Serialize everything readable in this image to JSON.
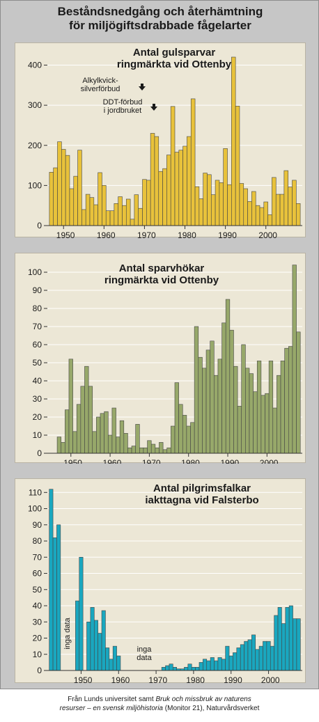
{
  "title_line1": "Beståndsnedgång och återhämtning",
  "title_line2": "för miljögiftsdrabbade fågelarter",
  "footer": {
    "part1": "Från Lunds universitet samt ",
    "italic1": "Bruk och missbruk av naturens",
    "italic2": "resurser – en svensk miljöhistoria",
    "part2": " (Monitor 21), Naturvårdsverket"
  },
  "colors": {
    "panel_bg": "#ece7d6",
    "frame_bg": "#c6c6c6",
    "grid": "#ffffff",
    "gulsparv": "#e8c23b",
    "sparvhok": "#97a86a",
    "pilgrimsfalk": "#1aa7bf"
  },
  "chart_data": [
    {
      "type": "bar",
      "title_line1": "Antal gulsparvar",
      "title_line2": "ringmärkta vid Ottenby",
      "x_ticks": [
        1950,
        1960,
        1970,
        1980,
        1990,
        2000
      ],
      "y_ticks": [
        0,
        100,
        200,
        300,
        400
      ],
      "ylim": [
        0,
        420
      ],
      "xlim": [
        1946,
        2009
      ],
      "grid": true,
      "annotations": [
        {
          "line1": "Alkylkvick-",
          "line2": "silverförbud",
          "arrow": "down-arrow",
          "year": 1966
        },
        {
          "line1": "DDT-förbud",
          "line2": "i jordbruket",
          "arrow": "down-arrow",
          "year": 1970
        }
      ],
      "years": [
        1947,
        1948,
        1949,
        1950,
        1951,
        1952,
        1953,
        1954,
        1955,
        1956,
        1957,
        1958,
        1959,
        1960,
        1961,
        1962,
        1963,
        1964,
        1965,
        1966,
        1967,
        1968,
        1969,
        1970,
        1971,
        1972,
        1973,
        1974,
        1975,
        1976,
        1977,
        1978,
        1979,
        1980,
        1981,
        1982,
        1983,
        1984,
        1985,
        1986,
        1987,
        1988,
        1989,
        1990,
        1991,
        1992,
        1993,
        1994,
        1995,
        1996,
        1997,
        1998,
        1999,
        2000,
        2001,
        2002,
        2003,
        2004,
        2005,
        2006,
        2007,
        2008
      ],
      "values": [
        133,
        144,
        209,
        190,
        175,
        92,
        123,
        188,
        40,
        78,
        70,
        52,
        132,
        100,
        37,
        37,
        55,
        72,
        50,
        66,
        16,
        77,
        43,
        115,
        113,
        230,
        222,
        135,
        142,
        176,
        297,
        183,
        188,
        198,
        222,
        316,
        97,
        67,
        131,
        127,
        77,
        113,
        107,
        192,
        102,
        420,
        298,
        105,
        92,
        60,
        85,
        50,
        45,
        59,
        27,
        120,
        78,
        78,
        137,
        96,
        113,
        55
      ]
    },
    {
      "type": "bar",
      "title_line1": "Antal sparvhökar",
      "title_line2": "ringmärkta vid Ottenby",
      "x_ticks": [
        1950,
        1960,
        1970,
        1980,
        1990,
        2000
      ],
      "y_ticks": [
        0,
        10,
        20,
        30,
        40,
        50,
        60,
        70,
        80,
        90,
        100
      ],
      "ylim": [
        0,
        105
      ],
      "xlim": [
        1944,
        2009
      ],
      "grid": true,
      "years": [
        1947,
        1948,
        1949,
        1950,
        1951,
        1952,
        1953,
        1954,
        1955,
        1956,
        1957,
        1958,
        1959,
        1960,
        1961,
        1962,
        1963,
        1964,
        1965,
        1966,
        1967,
        1968,
        1969,
        1970,
        1971,
        1972,
        1973,
        1974,
        1975,
        1976,
        1977,
        1978,
        1979,
        1980,
        1981,
        1982,
        1983,
        1984,
        1985,
        1986,
        1987,
        1988,
        1989,
        1990,
        1991,
        1992,
        1993,
        1994,
        1995,
        1996,
        1997,
        1998,
        1999,
        2000,
        2001,
        2002,
        2003,
        2004,
        2005,
        2006,
        2007,
        2008
      ],
      "values": [
        9,
        6,
        24,
        52,
        12,
        27,
        37,
        48,
        37,
        12,
        20,
        22,
        23,
        10,
        25,
        9,
        18,
        11,
        3,
        4,
        16,
        3,
        3,
        7,
        5,
        3,
        6,
        2,
        3,
        15,
        39,
        27,
        21,
        15,
        17,
        70,
        53,
        47,
        57,
        62,
        43,
        52,
        72,
        85,
        68,
        48,
        26,
        60,
        47,
        44,
        34,
        51,
        32,
        33,
        51,
        25,
        43,
        51,
        58,
        59,
        104,
        67
      ]
    },
    {
      "type": "bar",
      "title_line1": "Antal pilgrimsfalkar",
      "title_line2": "iakttagna vid Falsterbo",
      "x_ticks": [
        1950,
        1960,
        1970,
        1980,
        1990,
        2000
      ],
      "y_ticks": [
        0,
        10,
        20,
        30,
        40,
        50,
        60,
        70,
        80,
        90,
        100,
        110
      ],
      "ylim": [
        0,
        114
      ],
      "xlim": [
        1941,
        2009
      ],
      "grid": true,
      "annotations": [
        {
          "text": "inga data",
          "orientation": "vertical",
          "year": 1944
        },
        {
          "line1": "inga",
          "line2": "data",
          "year": 1966
        }
      ],
      "years": [
        1942,
        1943,
        1944,
        1949,
        1950,
        1952,
        1953,
        1954,
        1955,
        1956,
        1957,
        1958,
        1959,
        1960,
        1972,
        1973,
        1974,
        1975,
        1976,
        1977,
        1978,
        1979,
        1980,
        1981,
        1982,
        1983,
        1984,
        1985,
        1986,
        1987,
        1988,
        1989,
        1990,
        1991,
        1992,
        1993,
        1994,
        1995,
        1996,
        1997,
        1998,
        1999,
        2000,
        2001,
        2002,
        2003,
        2004,
        2005,
        2006,
        2007,
        2008
      ],
      "values": [
        112,
        82,
        90,
        43,
        70,
        30,
        39,
        31,
        23,
        37,
        14,
        7,
        15,
        9,
        2,
        3,
        4,
        2,
        1,
        1,
        2,
        4,
        2,
        2,
        5,
        7,
        6,
        8,
        6,
        8,
        7,
        15,
        9,
        11,
        14,
        16,
        18,
        19,
        22,
        13,
        15,
        18,
        18,
        15,
        34,
        39,
        29,
        39,
        40,
        32,
        32
      ]
    }
  ]
}
